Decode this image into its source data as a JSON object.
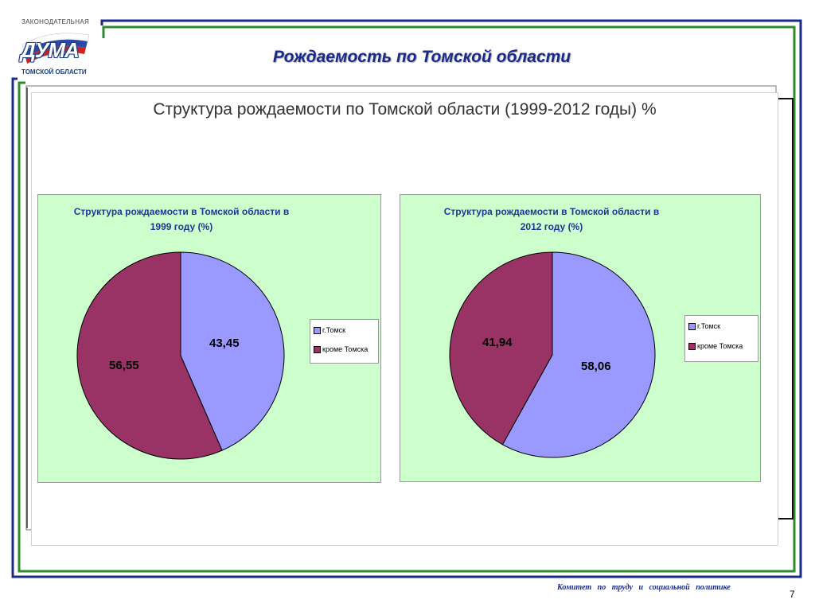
{
  "logo": {
    "top_text": "ЗАКОНОДАТЕЛЬНАЯ",
    "word": "ДУМА",
    "bottom_text": "ТОМСКОЙ ОБЛАСТИ"
  },
  "slide_title": "Рождаемость по Томской области",
  "chart_title": "Структура рождаемости по Томской области (1999-2012 годы) %",
  "colors": {
    "tomsk": "#9999ff",
    "outside": "#993366",
    "pie_bg": "#ccffcc",
    "frame_blue": "#1b2a8c",
    "frame_green": "#2e8b2e"
  },
  "chart_data": [
    {
      "type": "pie",
      "title": "Структура рождаемости в Томской области в 1999 году (%)",
      "title_lines": [
        "Структура рождаемости в Томской области в",
        "1999 году (%)"
      ],
      "categories": [
        "г.Томск",
        "кроме Томска"
      ],
      "values": [
        43.45,
        56.55
      ],
      "labels": [
        "43,45",
        "56,55"
      ],
      "legend": "right"
    },
    {
      "type": "pie",
      "title": "Структура рождаемости в Томской области в 2012 году (%)",
      "title_lines": [
        "Структура рождаемости в Томской области в",
        "2012 году (%)"
      ],
      "categories": [
        "г.Томск",
        "кроме Томска"
      ],
      "values": [
        58.06,
        41.94
      ],
      "labels": [
        "58,06",
        "41,94"
      ],
      "legend": "right"
    }
  ],
  "footer": "Комитет по труду и социальной политике",
  "page_number": "7"
}
